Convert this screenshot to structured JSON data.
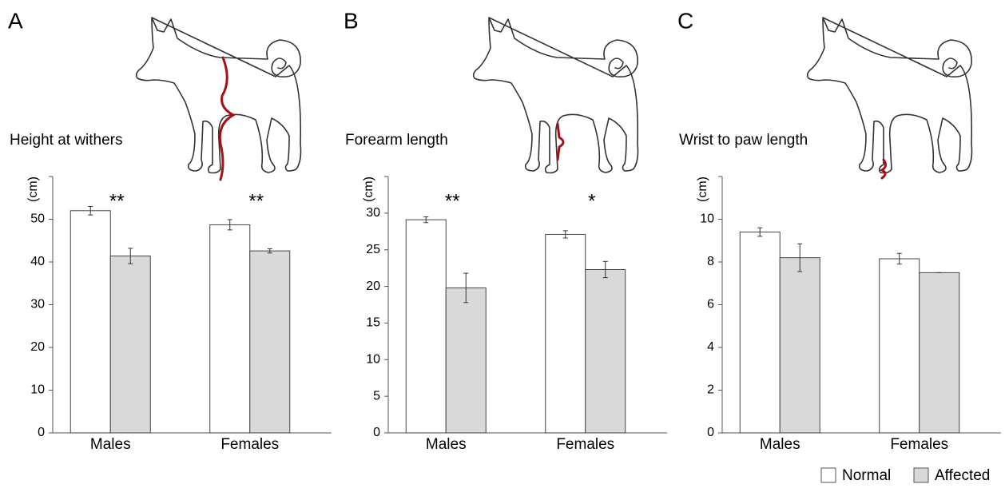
{
  "chart_data": [
    {
      "type": "bar",
      "label": "A",
      "title": "Height at withers",
      "ylabel": "(cm)",
      "categories": [
        "Males",
        "Females"
      ],
      "series": [
        {
          "name": "Normal",
          "color": "#ffffff",
          "values": [
            52.0,
            48.7
          ],
          "errors": [
            1.0,
            1.2
          ]
        },
        {
          "name": "Affected",
          "color": "#d9d9d9",
          "values": [
            41.4,
            42.6
          ],
          "errors": [
            1.8,
            0.5
          ]
        }
      ],
      "annotations": [
        "**",
        "**"
      ],
      "ylim": [
        0,
        60
      ],
      "yticks": [
        0,
        10,
        20,
        30,
        40,
        50
      ]
    },
    {
      "type": "bar",
      "label": "B",
      "title": "Forearm length",
      "ylabel": "(cm)",
      "categories": [
        "Males",
        "Females"
      ],
      "series": [
        {
          "name": "Normal",
          "color": "#ffffff",
          "values": [
            29.1,
            27.1
          ],
          "errors": [
            0.4,
            0.5
          ]
        },
        {
          "name": "Affected",
          "color": "#d9d9d9",
          "values": [
            19.8,
            22.3
          ],
          "errors": [
            2.0,
            1.1
          ]
        }
      ],
      "annotations": [
        "**",
        "*"
      ],
      "ylim": [
        0,
        35
      ],
      "yticks": [
        0,
        5,
        10,
        15,
        20,
        25,
        30
      ]
    },
    {
      "type": "bar",
      "label": "C",
      "title": "Wrist to paw length",
      "ylabel": "(cm)",
      "categories": [
        "Males",
        "Females"
      ],
      "series": [
        {
          "name": "Normal",
          "color": "#ffffff",
          "values": [
            9.4,
            8.15
          ],
          "errors": [
            0.2,
            0.25
          ]
        },
        {
          "name": "Affected",
          "color": "#d9d9d9",
          "values": [
            8.2,
            7.5
          ],
          "errors": [
            0.65,
            0
          ]
        }
      ],
      "ylim": [
        0,
        12
      ],
      "yticks": [
        0,
        2,
        4,
        6,
        8,
        10
      ]
    }
  ]
}
